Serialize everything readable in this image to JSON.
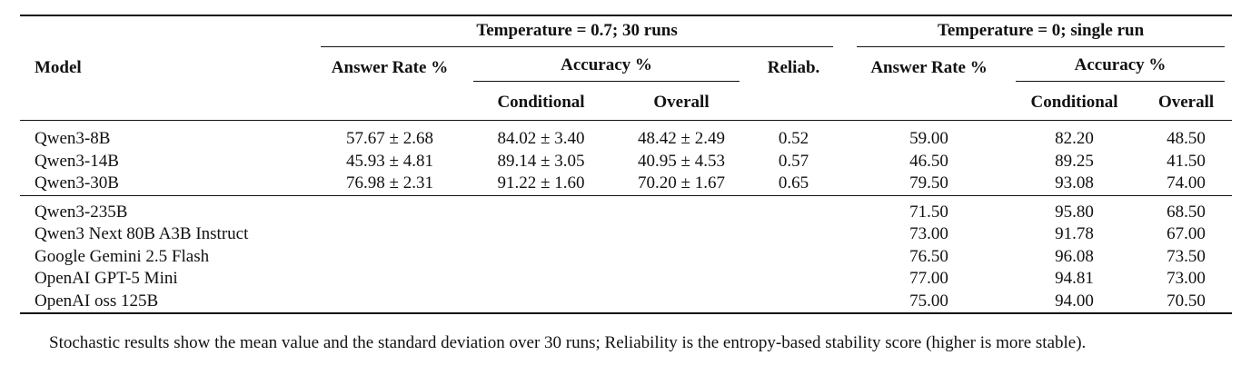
{
  "table": {
    "header": {
      "model": "Model",
      "stochastic": {
        "title": "Temperature = 0.7; 30 runs",
        "answer_rate": "Answer Rate %",
        "accuracy": "Accuracy %",
        "conditional": "Conditional",
        "overall": "Overall",
        "reliability": "Reliab."
      },
      "deterministic": {
        "title": "Temperature = 0; single run",
        "answer_rate": "Answer Rate %",
        "accuracy": "Accuracy %",
        "conditional": "Conditional",
        "overall": "Overall"
      }
    },
    "rows_a": [
      [
        "Qwen3-8B",
        "57.67 ± 2.68",
        "84.02 ± 3.40",
        "48.42 ± 2.49",
        "0.52",
        "59.00",
        "82.20",
        "48.50"
      ],
      [
        "Qwen3-14B",
        "45.93 ± 4.81",
        "89.14 ± 3.05",
        "40.95 ± 4.53",
        "0.57",
        "46.50",
        "89.25",
        "41.50"
      ],
      [
        "Qwen3-30B",
        "76.98 ± 2.31",
        "91.22 ± 1.60",
        "70.20 ± 1.67",
        "0.65",
        "79.50",
        "93.08",
        "74.00"
      ]
    ],
    "rows_b": [
      [
        "Qwen3-235B",
        "71.50",
        "95.80",
        "68.50"
      ],
      [
        "Qwen3 Next 80B A3B Instruct",
        "73.00",
        "91.78",
        "67.00"
      ],
      [
        "Google Gemini 2.5 Flash",
        "76.50",
        "96.08",
        "73.50"
      ],
      [
        "OpenAI GPT-5 Mini",
        "77.00",
        "94.81",
        "73.00"
      ],
      [
        "OpenAI oss 125B",
        "75.00",
        "94.00",
        "70.50"
      ]
    ],
    "note": "Stochastic results show the mean value and the standard deviation over 30 runs; Reliability is the entropy-based stability score (higher is more stable)."
  }
}
